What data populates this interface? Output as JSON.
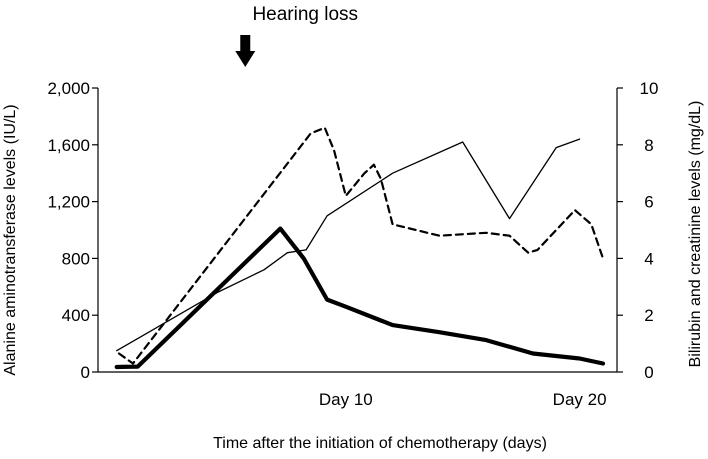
{
  "chart_data": {
    "type": "line",
    "title": "",
    "xlabel": "Time after the initiation of chemotherapy (days)",
    "ylabel": "Alanine aminotransferase levels (IU/L)",
    "y2label": "Bilirubin and creatinine levels (mg/dL)",
    "xlim": [
      0,
      21
    ],
    "ylim": [
      0,
      2000
    ],
    "y2lim": [
      0,
      10
    ],
    "x_tick_labels": [
      {
        "x": 10,
        "label": "Day 10"
      },
      {
        "x": 20,
        "label": "Day 20"
      }
    ],
    "y_ticks": [
      {
        "value": 0,
        "label": "0"
      },
      {
        "value": 400,
        "label": "400"
      },
      {
        "value": 800,
        "label": "800"
      },
      {
        "value": 1200,
        "label": "1,200"
      },
      {
        "value": 1600,
        "label": "1,600"
      },
      {
        "value": 2000,
        "label": "2,000"
      }
    ],
    "y2_ticks": [
      {
        "value": 0,
        "label": "0"
      },
      {
        "value": 2,
        "label": "2"
      },
      {
        "value": 4,
        "label": "4"
      },
      {
        "value": 6,
        "label": "6"
      },
      {
        "value": 8,
        "label": "8"
      },
      {
        "value": 10,
        "label": "10"
      }
    ],
    "annotation": {
      "text": "Hearing loss",
      "x": 5.7
    },
    "series": [
      {
        "name": "alanine-aminotransferase",
        "axis": "left",
        "style": "thick",
        "points": [
          [
            0.2,
            35
          ],
          [
            1.1,
            38
          ],
          [
            7.2,
            1010
          ],
          [
            8.2,
            800
          ],
          [
            9.2,
            510
          ],
          [
            10,
            460
          ],
          [
            12,
            330
          ],
          [
            14,
            280
          ],
          [
            16,
            225
          ],
          [
            18,
            130
          ],
          [
            20,
            95
          ],
          [
            21,
            60
          ]
        ]
      },
      {
        "name": "bilirubin",
        "axis": "right",
        "style": "dashed",
        "points": [
          [
            0.3,
            0.65
          ],
          [
            0.9,
            0.3
          ],
          [
            8.5,
            8.4
          ],
          [
            9.1,
            8.6
          ],
          [
            9.5,
            7.8
          ],
          [
            10.0,
            6.2
          ],
          [
            10.8,
            7.0
          ],
          [
            11.2,
            7.3
          ],
          [
            11.5,
            6.8
          ],
          [
            12.0,
            5.2
          ],
          [
            14.0,
            4.8
          ],
          [
            16.0,
            4.9
          ],
          [
            17.0,
            4.8
          ],
          [
            17.8,
            4.2
          ],
          [
            18.2,
            4.3
          ],
          [
            19.8,
            5.7
          ],
          [
            20.5,
            5.2
          ],
          [
            21.0,
            4.0
          ]
        ]
      },
      {
        "name": "creatinine",
        "axis": "right",
        "style": "thin",
        "points": [
          [
            0.2,
            0.75
          ],
          [
            4.5,
            2.8
          ],
          [
            6.5,
            3.6
          ],
          [
            7.5,
            4.2
          ],
          [
            8.3,
            4.3
          ],
          [
            9.2,
            5.5
          ],
          [
            12.0,
            7.0
          ],
          [
            15.0,
            8.1
          ],
          [
            17.0,
            5.4
          ],
          [
            19.0,
            7.9
          ],
          [
            20.0,
            8.2
          ]
        ]
      }
    ]
  }
}
